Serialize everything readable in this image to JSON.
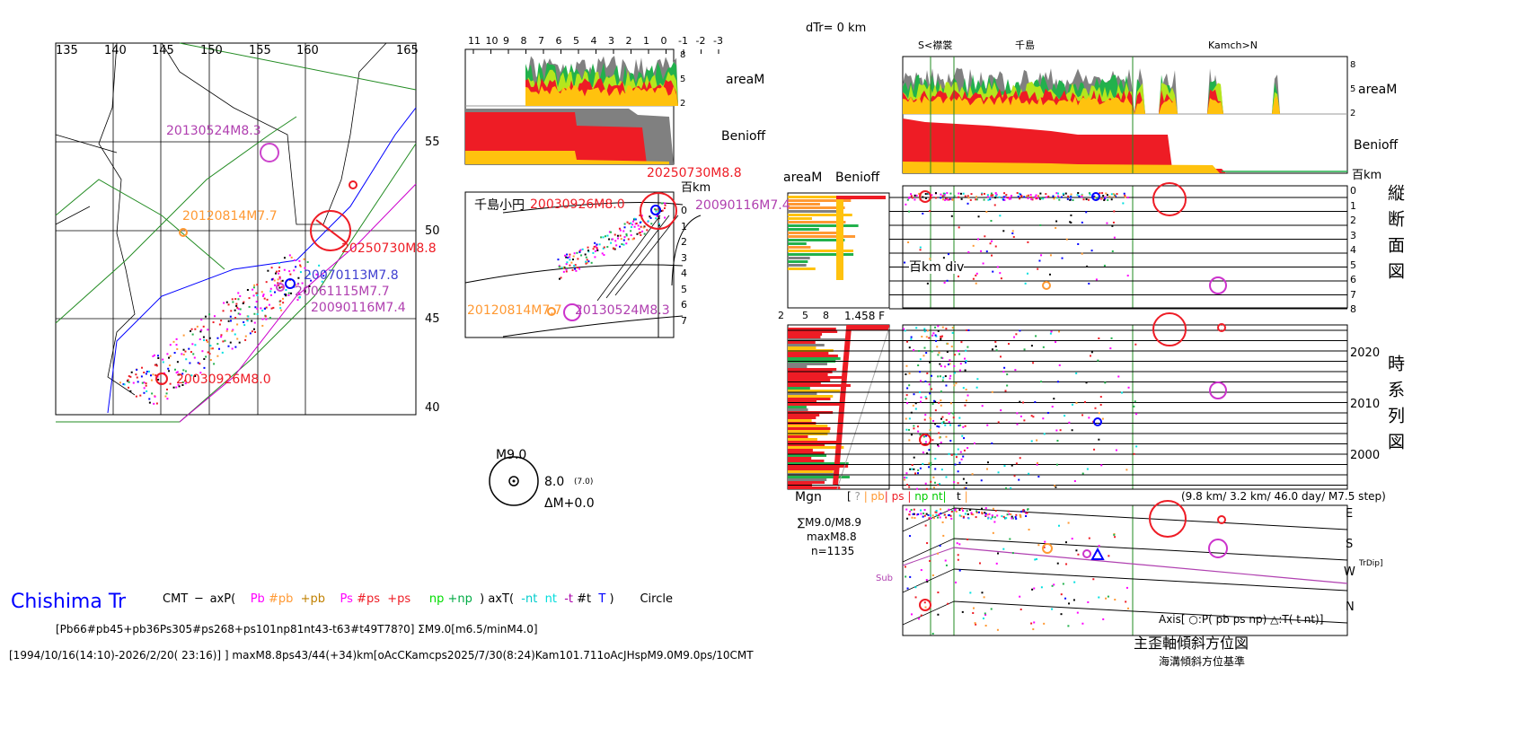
{
  "colors": {
    "red": "#ee1c25",
    "yellow": "#ffc20e",
    "gray": "#808080",
    "green": "#22b14c",
    "lime": "#b5e61d",
    "purple": "#b040b0",
    "magenta": "#ff00ff",
    "blue": "#0000ff",
    "orange": "#ff9933",
    "cyan": "#00e0e0"
  },
  "header": {
    "dtr": "dTr=      0 km",
    "south": "S<襟裳",
    "center": "千島",
    "north": "Kamch>N"
  },
  "map": {
    "lon_ticks": [
      "135",
      "140",
      "145",
      "150",
      "155",
      "160",
      "165"
    ],
    "lat_ticks": [
      "55",
      "50",
      "45",
      "40"
    ],
    "events": [
      {
        "label": "20130524M8.3",
        "color": "#b040b0"
      },
      {
        "label": "20120814M7.7",
        "color": "#ff9933"
      },
      {
        "label": "20250730M8.8",
        "color": "#ee1c25"
      },
      {
        "label": "20070113M7.8",
        "color": "#4040d0"
      },
      {
        "label": "20061115M7.7",
        "color": "#b040b0"
      },
      {
        "label": "20090116M7.4",
        "color": "#b040b0"
      },
      {
        "label": "20030926M8.0",
        "color": "#ee1c25"
      }
    ]
  },
  "profile": {
    "x_ticks": [
      "11",
      "10",
      "9",
      "8",
      "7",
      "6",
      "5",
      "4",
      "3",
      "2",
      "1",
      "0",
      "-1",
      "-2",
      "-3"
    ],
    "area_ticks": [
      "8",
      "5",
      "2"
    ],
    "area_label": "areaM",
    "benioff_label": "Benioff",
    "section_title": "千島小円",
    "unit": "百km",
    "depth_ticks": [
      "0",
      "1",
      "2",
      "3",
      "4",
      "5",
      "6",
      "7"
    ],
    "events": [
      {
        "label": "20250730M8.8",
        "color": "#ee1c25"
      },
      {
        "label": "20030926M8.0",
        "color": "#ee1c25"
      },
      {
        "label": "20090116M7.4",
        "color": "#b040b0"
      },
      {
        "label": "20120814M7.7",
        "color": "#ff9933"
      },
      {
        "label": "20130524M8.3",
        "color": "#b040b0"
      }
    ]
  },
  "scale_legend": {
    "max": "M9.0",
    "mid": "8.0",
    "sub": "(7.0)",
    "delta": "ΔM+0.0"
  },
  "right": {
    "area_label": "areaM",
    "benioff_label": "Benioff",
    "unit": "百km",
    "area_ticks": [
      "8",
      "5",
      "2"
    ],
    "depth_ticks": [
      "0",
      "1",
      "2",
      "3",
      "4",
      "5",
      "6",
      "7",
      "8"
    ],
    "depth_div": "百km div",
    "section_title": "縦断面図",
    "time_title": "時系列図",
    "time_ticks": [
      "2020",
      "2010",
      "2000"
    ],
    "side_area": "areaM",
    "side_benioff": "Benioff",
    "side_ticks": [
      "2",
      "5",
      "8"
    ],
    "side_value": "1.458 F",
    "mgn": "Mgn",
    "class_legend": [
      {
        "t": "[ ",
        "c": "#000"
      },
      {
        "t": "? ",
        "c": "#999"
      },
      {
        "t": "| ",
        "c": "#ff9933"
      },
      {
        "t": "pb",
        "c": "#ff9933"
      },
      {
        "t": "| ",
        "c": "#ee1c25"
      },
      {
        "t": "ps ",
        "c": "#ee1c25"
      },
      {
        "t": "| ",
        "c": "#ee1c25"
      },
      {
        "t": "np nt",
        "c": "#00cc00"
      },
      {
        "t": "| ",
        "c": "#00cc00"
      },
      {
        "t": "  t ",
        "c": "#000"
      },
      {
        "t": "|",
        "c": "#ff9933"
      }
    ],
    "step": "(9.8 km/ 3.2 km/ 46.0 day/ M7.5 step)",
    "sum": "∑M9.0/M8.9",
    "maxm": "maxM8.8",
    "n": "n=1135",
    "sub": "Sub",
    "axis_ticks": [
      "E",
      "S",
      "W",
      "N"
    ],
    "axis_sup": "TrDip]",
    "axis_legend": "Axis[ ○:P( pb ps np) △:T( t nt)]",
    "axis_title": "主歪軸傾斜方位図",
    "axis_subtitle": "海溝傾斜方位基準"
  },
  "footer": {
    "region": "Chishima Tr",
    "legend": [
      {
        "t": "CMT  ─  axP(    ",
        "c": "#000"
      },
      {
        "t": "Pb ",
        "c": "#ff00ff"
      },
      {
        "t": "#pb  ",
        "c": "#ff9933"
      },
      {
        "t": "+pb    ",
        "c": "#c08000"
      },
      {
        "t": "Ps ",
        "c": "#ff00ff"
      },
      {
        "t": "#ps  ",
        "c": "#ee1c25"
      },
      {
        "t": "+ps     ",
        "c": "#ee1c25"
      },
      {
        "t": "np ",
        "c": "#00dd00"
      },
      {
        "t": "+np  ",
        "c": "#00aa44"
      },
      {
        "t": ") axT(  ",
        "c": "#000"
      },
      {
        "t": "-nt  ",
        "c": "#00cccc"
      },
      {
        "t": "nt  ",
        "c": "#00dddd"
      },
      {
        "t": "-t ",
        "c": "#aa00aa"
      },
      {
        "t": "#t  ",
        "c": "#000"
      },
      {
        "t": "T ",
        "c": "#0000ff"
      },
      {
        "t": ")       Circle",
        "c": "#000"
      }
    ],
    "counts": "[Pb66#pb45+pb36Ps305#ps268+ps101np81nt43-t63#t49T78?0] ΣM9.0[m6.5/minM4.0]",
    "period": "[1994/10/16(14:10)-2026/2/20( 23:16)] ] maxM8.8ps43/44(+34)km[oAcCKamcps2025/7/30(8:24)Kam101.711oAcJHspM9.0M9.0ps/10CMT"
  },
  "chart_data": [
    {
      "type": "scatter",
      "title": "",
      "x_ticks": [
        "135",
        "140",
        "145",
        "150",
        "155",
        "160",
        "165"
      ],
      "y_ticks": [
        "55",
        "50",
        "45",
        "40"
      ],
      "annotations": [
        "20130524M8.3",
        "20120814M7.7",
        "20250730M8.8",
        "20070113M7.8",
        "20061115M7.7",
        "20090116M7.4",
        "20030926M8.0"
      ]
    },
    {
      "type": "area",
      "ylabel": "areaM",
      "y_ticks": [
        "8",
        "5",
        "2"
      ],
      "x_ticks": [
        "11",
        "10",
        "9",
        "8",
        "7",
        "6",
        "5",
        "4",
        "3",
        "2",
        "1",
        "0",
        "-1",
        "-2",
        "-3"
      ]
    },
    {
      "type": "scatter",
      "ylabel": "百km",
      "y_ticks": [
        "0",
        "1",
        "2",
        "3",
        "4",
        "5",
        "6",
        "7",
        "8"
      ]
    },
    {
      "type": "scatter",
      "y_ticks": [
        "2020",
        "2010",
        "2000"
      ]
    },
    {
      "type": "scatter",
      "y_ticks": [
        "E",
        "S",
        "W",
        "N"
      ]
    }
  ]
}
